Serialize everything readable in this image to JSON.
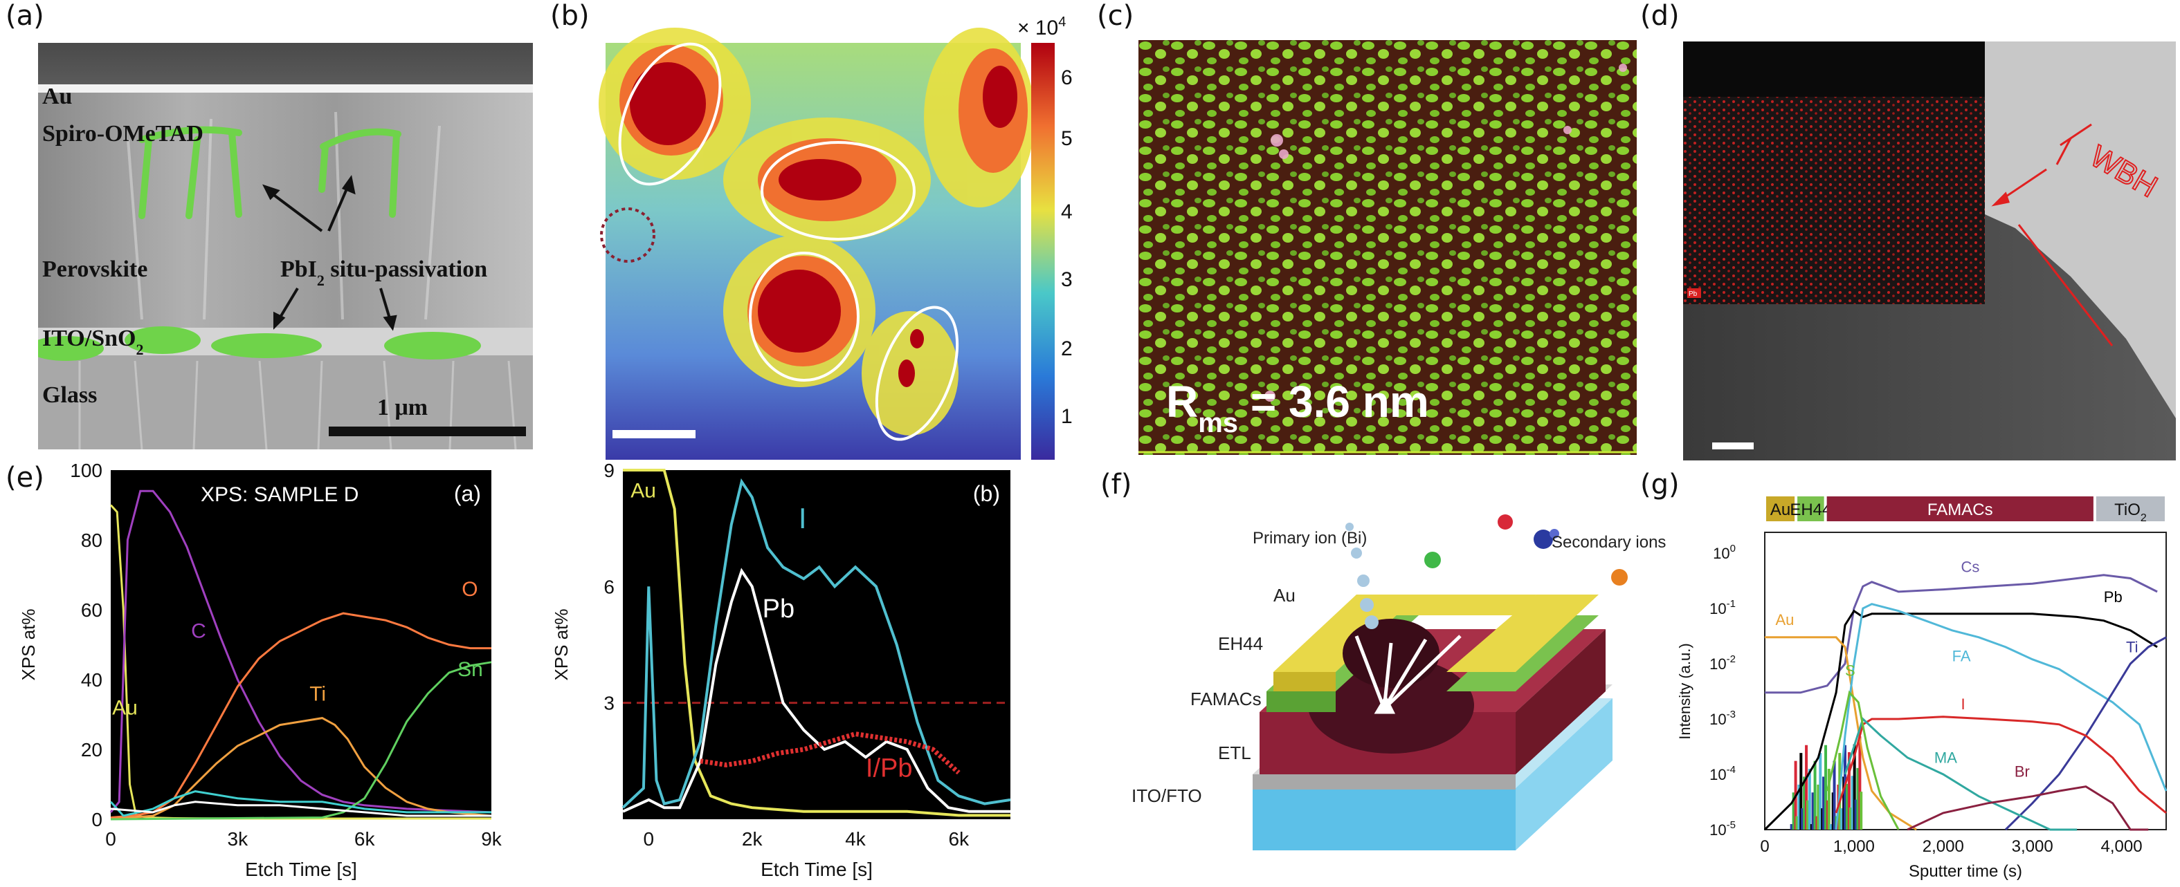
{
  "panel_labels": [
    "(a)",
    "(b)",
    "(c)",
    "(d)",
    "(e)",
    "(f)",
    "(g)"
  ],
  "panel_a": {
    "layers": [
      "Au",
      "Spiro-OMeTAD",
      "Perovskite",
      "ITO/SnO",
      "Glass"
    ],
    "sub2": "2",
    "annotation": "PbI",
    "annotation_tail": " situ-passivation",
    "scale": "1 μm"
  },
  "panel_b": {
    "colorbar_exp": "× 10",
    "colorbar_exp_sup": "4",
    "colorbar_ticks": [
      "6",
      "5",
      "4",
      "3",
      "2",
      "1"
    ],
    "colors": {
      "low": "#3a2a9e",
      "high": "#b00010"
    }
  },
  "panel_c": {
    "rms": "R",
    "rms_sub": "ms",
    "rms_tail": " = 3.6 nm"
  },
  "panel_d": {
    "label": "WBH",
    "inset": "Pb"
  },
  "chart_data": [
    {
      "type": "line",
      "title": "XPS: SAMPLE D",
      "tag": "(a)",
      "xlabel": "Etch Time [s]",
      "ylabel": "XPS at%",
      "xlim": [
        0,
        9000
      ],
      "ylim": [
        0,
        100
      ],
      "xticks": [
        "0",
        "3k",
        "6k",
        "9k"
      ],
      "yticks": [
        "0",
        "20",
        "40",
        "60",
        "80",
        "100"
      ],
      "series": [
        {
          "name": "Au",
          "color": "#e6e65a",
          "x": [
            0,
            150,
            300,
            450,
            600,
            900,
            1500,
            3000,
            6000,
            9000
          ],
          "y": [
            90,
            88,
            60,
            10,
            1,
            0.5,
            0.3,
            0.2,
            0.2,
            0.2
          ]
        },
        {
          "name": "C",
          "color": "#a040c0",
          "x": [
            0,
            200,
            400,
            700,
            1000,
            1400,
            1800,
            2200,
            2600,
            3000,
            3500,
            4000,
            4500,
            5000,
            5500,
            6000,
            7000,
            8000,
            9000
          ],
          "y": [
            2,
            5,
            80,
            94,
            94,
            88,
            78,
            65,
            52,
            40,
            28,
            18,
            11,
            7,
            5,
            4,
            3,
            2.5,
            2
          ]
        },
        {
          "name": "O",
          "color": "#ff7a40",
          "x": [
            0,
            500,
            1000,
            1500,
            2000,
            2500,
            3000,
            3500,
            4000,
            4500,
            5000,
            5500,
            6000,
            6500,
            7000,
            7500,
            8000,
            8500,
            9000
          ],
          "y": [
            0.5,
            1,
            2,
            6,
            16,
            27,
            38,
            46,
            51,
            54,
            57,
            59,
            58,
            57,
            55,
            52,
            50,
            49,
            49
          ]
        },
        {
          "name": "Ti",
          "color": "#f0a040",
          "x": [
            0,
            1000,
            1500,
            2000,
            2500,
            3000,
            3500,
            4000,
            4500,
            5000,
            5300,
            5600,
            6000,
            6500,
            7000,
            7500,
            8000,
            9000
          ],
          "y": [
            0,
            1,
            4,
            10,
            16,
            21,
            24,
            27,
            28,
            29,
            27,
            23,
            15,
            9,
            5,
            3,
            2,
            1
          ]
        },
        {
          "name": "Sn",
          "color": "#60d060",
          "x": [
            0,
            5000,
            5500,
            6000,
            6500,
            7000,
            7500,
            8000,
            8500,
            9000
          ],
          "y": [
            0,
            0.5,
            2,
            6,
            16,
            28,
            36,
            42,
            44,
            45
          ]
        },
        {
          "name": "",
          "color": "#40d0d0",
          "x": [
            0,
            300,
            1000,
            1500,
            2000,
            2500,
            3000,
            4000,
            5000,
            6000,
            7000,
            8000,
            9000
          ],
          "y": [
            5,
            1,
            3,
            6,
            8,
            7,
            6,
            5,
            5,
            3,
            2,
            2,
            2
          ]
        },
        {
          "name": "",
          "color": "#ffffff",
          "x": [
            0,
            1000,
            1500,
            2000,
            3000,
            4000,
            5000,
            6000,
            7000,
            9000
          ],
          "y": [
            3,
            2,
            4,
            5,
            4,
            4,
            3,
            2,
            1,
            1
          ]
        }
      ]
    },
    {
      "type": "line",
      "tag": "(b)",
      "xlabel": "Etch Time [s]",
      "ylabel": "XPS at%",
      "xlim": [
        -500,
        7000
      ],
      "ylim": [
        0,
        9
      ],
      "xticks": [
        "0",
        "2k",
        "4k",
        "6k"
      ],
      "yticks": [
        "3",
        "6",
        "9"
      ],
      "hline": 3,
      "series": [
        {
          "name": "Au",
          "color": "#e6e65a",
          "x": [
            -500,
            300,
            500,
            700,
            900,
            1200,
            1600,
            2000,
            3000,
            4000,
            5000,
            6000,
            7000
          ],
          "y": [
            9,
            9,
            8,
            4,
            1.5,
            0.6,
            0.4,
            0.3,
            0.2,
            0.2,
            0.2,
            0.1,
            0.1
          ]
        },
        {
          "name": "I",
          "color": "#50c0d0",
          "x": [
            -500,
            -100,
            0,
            150,
            300,
            600,
            1000,
            1300,
            1600,
            1800,
            2000,
            2300,
            2600,
            3000,
            3300,
            3600,
            4000,
            4400,
            4800,
            5200,
            5600,
            6000,
            6500,
            7000
          ],
          "y": [
            0.3,
            0.8,
            6,
            1,
            0.4,
            0.5,
            2,
            5,
            7.6,
            8.7,
            8.3,
            7,
            6.5,
            6.2,
            6.5,
            6,
            6.5,
            6,
            4.5,
            2.5,
            1,
            0.6,
            0.4,
            0.5
          ]
        },
        {
          "name": "Pb",
          "color": "#ffffff",
          "x": [
            -500,
            0,
            300,
            600,
            1000,
            1300,
            1600,
            1800,
            2000,
            2300,
            2600,
            3000,
            3400,
            3800,
            4200,
            4600,
            5000,
            5400,
            5800,
            6200,
            7000
          ],
          "y": [
            0.2,
            0.5,
            0.3,
            0.3,
            1.5,
            4,
            5.6,
            6.4,
            6,
            4.5,
            3,
            2.3,
            1.8,
            2,
            1.6,
            2,
            1.8,
            0.8,
            0.3,
            0.2,
            0.2
          ]
        },
        {
          "name": "I/Pb",
          "color": "#e03030",
          "x": [
            1000,
            1500,
            2000,
            2500,
            3000,
            3500,
            4000,
            4500,
            5000,
            5500,
            6000
          ],
          "y": [
            1.5,
            1.4,
            1.5,
            1.7,
            1.8,
            2,
            2.2,
            2.1,
            2,
            1.8,
            1.2
          ]
        }
      ]
    },
    {
      "type": "line",
      "tag": "(g)",
      "xlabel": "Sputter time (s)",
      "ylabel": "Intensity (a.u.)",
      "yscale": "log",
      "xlim": [
        0,
        4500
      ],
      "ylim": [
        1e-05,
        1
      ],
      "xticks": [
        "0",
        "1,000",
        "2,000",
        "3,000",
        "4,000"
      ],
      "yticks": [
        "10",
        "10",
        "10",
        "10",
        "10",
        "10"
      ],
      "ytick_exps": [
        "0",
        "-1",
        "-2",
        "-3",
        "-4",
        "-5"
      ],
      "layer_bar": [
        {
          "label": "Au",
          "color": "#c8a828",
          "from": 0,
          "to": 350
        },
        {
          "label": "EH44",
          "color": "#7ac24e",
          "from": 350,
          "to": 680
        },
        {
          "label": "FAMACs",
          "color": "#8e2038",
          "from": 680,
          "to": 3700
        },
        {
          "label": "TiO",
          "sub": "2",
          "color": "#b6bcc4",
          "from": 3700,
          "to": 4500
        }
      ],
      "series": [
        {
          "name": "Cs",
          "color": "#6a5aa8",
          "x": [
            0,
            400,
            700,
            900,
            1000,
            1100,
            1200,
            1500,
            2000,
            2500,
            3000,
            3500,
            3800,
            4100,
            4400
          ],
          "y": [
            0.003,
            0.003,
            0.004,
            0.01,
            0.1,
            0.25,
            0.3,
            0.2,
            0.22,
            0.25,
            0.28,
            0.35,
            0.4,
            0.35,
            0.2
          ]
        },
        {
          "name": "Pb",
          "color": "#000000",
          "x": [
            0,
            300,
            600,
            800,
            900,
            1000,
            1100,
            1200,
            1500,
            2000,
            2500,
            3000,
            3500,
            3800,
            4100,
            4400
          ],
          "y": [
            1e-05,
            3e-05,
            0.0002,
            0.003,
            0.05,
            0.09,
            0.07,
            0.08,
            0.08,
            0.08,
            0.08,
            0.08,
            0.07,
            0.06,
            0.04,
            0.02
          ]
        },
        {
          "name": "Au",
          "color": "#e8a030",
          "x": [
            0,
            300,
            600,
            800,
            900,
            1000,
            1100,
            1200,
            1400,
            1700
          ],
          "y": [
            0.03,
            0.03,
            0.03,
            0.03,
            0.02,
            0.002,
            0.0002,
            5e-05,
            2e-05,
            1e-05
          ]
        },
        {
          "name": "FA",
          "color": "#50b8d8",
          "x": [
            800,
            900,
            1000,
            1100,
            1200,
            1500,
            1800,
            2100,
            2400,
            2700,
            3000,
            3300,
            3600,
            3900,
            4200,
            4500
          ],
          "y": [
            1e-05,
            0.0005,
            0.01,
            0.1,
            0.12,
            0.09,
            0.06,
            0.04,
            0.03,
            0.02,
            0.012,
            0.008,
            0.004,
            0.002,
            0.0008,
            5e-05
          ]
        },
        {
          "name": "Ti",
          "color": "#3a3a98",
          "x": [
            2700,
            3000,
            3300,
            3600,
            3900,
            4100,
            4300,
            4500
          ],
          "y": [
            1e-05,
            3e-05,
            0.0001,
            0.0005,
            0.003,
            0.01,
            0.02,
            0.03
          ]
        },
        {
          "name": "I",
          "color": "#d82828",
          "x": [
            800,
            1000,
            1100,
            1200,
            1500,
            2000,
            2500,
            3000,
            3300,
            3600,
            3900,
            4200,
            4500
          ],
          "y": [
            2e-05,
            0.0002,
            0.0008,
            0.001,
            0.001,
            0.0011,
            0.001,
            0.0009,
            0.0008,
            0.0005,
            0.0002,
            5e-05,
            2e-05
          ]
        },
        {
          "name": "MA",
          "color": "#30a8a0",
          "x": [
            900,
            1100,
            1300,
            1600,
            2000,
            2400,
            2800,
            3200,
            3500
          ],
          "y": [
            0.0001,
            0.001,
            0.0005,
            0.0002,
            0.0001,
            4e-05,
            2e-05,
            1e-05,
            1e-05
          ]
        },
        {
          "name": "Br",
          "color": "#8a2040",
          "x": [
            1600,
            2000,
            2500,
            3000,
            3300,
            3600,
            3900,
            4100,
            4300
          ],
          "y": [
            1e-05,
            2e-05,
            3e-05,
            4e-05,
            5e-05,
            6e-05,
            3e-05,
            1e-05,
            1e-05
          ]
        },
        {
          "name": "S",
          "color": "#6ac03a",
          "x": [
            700,
            850,
            950,
            1050,
            1150,
            1300,
            1500
          ],
          "y": [
            5e-05,
            0.0005,
            0.003,
            0.002,
            0.0003,
            4e-05,
            1e-05
          ]
        }
      ]
    }
  ],
  "panel_f": {
    "layers": [
      "Au",
      "EH44",
      "FAMACs",
      "ETL",
      "ITO/FTO"
    ],
    "primary": "Primary ion (Bi)",
    "secondary": "Secondary ions"
  }
}
